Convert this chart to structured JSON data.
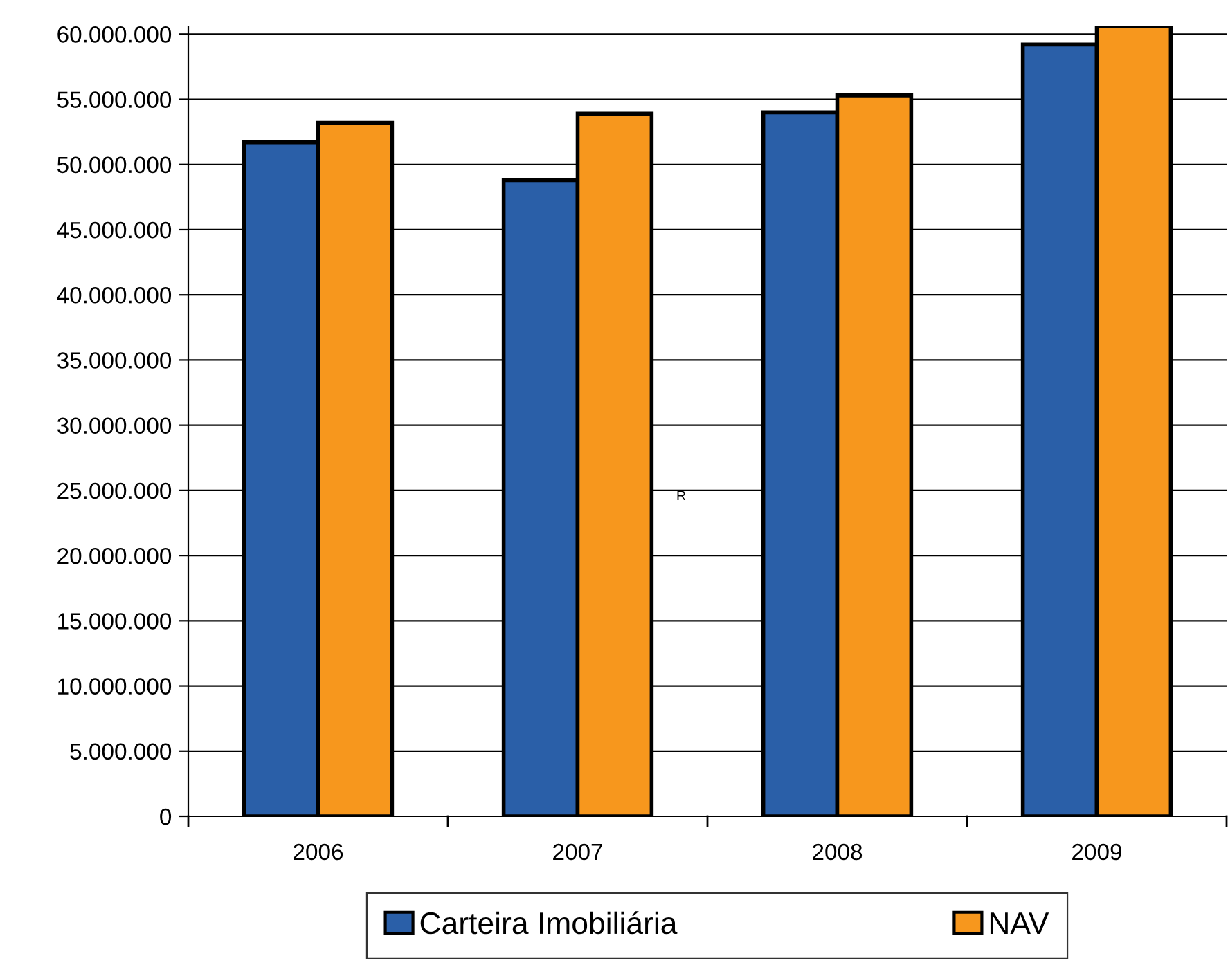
{
  "chart_data": {
    "type": "bar",
    "categories": [
      "2006",
      "2007",
      "2008",
      "2009"
    ],
    "series": [
      {
        "name": "Carteira Imobiliária",
        "color": "#2a5fa8",
        "values": [
          51700000,
          48800000,
          54000000,
          59200000
        ]
      },
      {
        "name": "NAV",
        "color": "#f7971d",
        "values": [
          53200000,
          53900000,
          55300000,
          60600000
        ]
      }
    ],
    "ylim": [
      0,
      60600000
    ],
    "yticks": [
      {
        "value": 0,
        "label": "0"
      },
      {
        "value": 5000000,
        "label": "5.000.000"
      },
      {
        "value": 10000000,
        "label": "10.000.000"
      },
      {
        "value": 15000000,
        "label": "15.000.000"
      },
      {
        "value": 20000000,
        "label": "20.000.000"
      },
      {
        "value": 25000000,
        "label": "25.000.000"
      },
      {
        "value": 30000000,
        "label": "30.000.000"
      },
      {
        "value": 35000000,
        "label": "35.000.000"
      },
      {
        "value": 40000000,
        "label": "40.000.000"
      },
      {
        "value": 45000000,
        "label": "45.000.000"
      },
      {
        "value": 50000000,
        "label": "50.000.000"
      },
      {
        "value": 55000000,
        "label": "55.000.000"
      },
      {
        "value": 60000000,
        "label": "60.000.000"
      }
    ],
    "grid": "y",
    "legend": "bottom",
    "annotations": [
      "R"
    ]
  }
}
